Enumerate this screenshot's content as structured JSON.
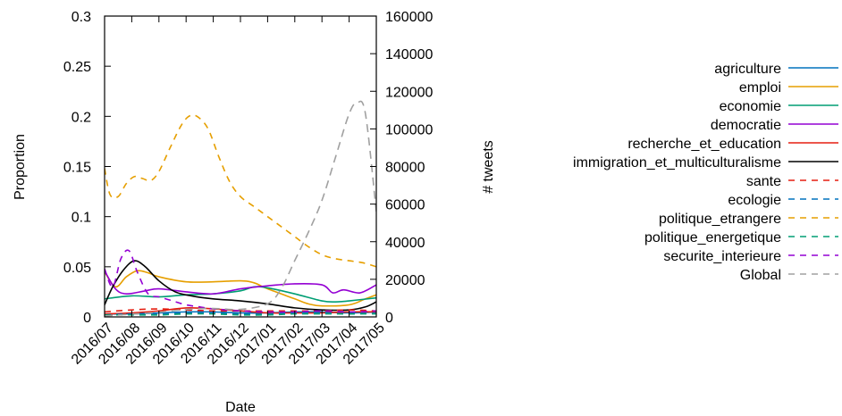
{
  "chart_data": {
    "type": "line",
    "xlabel": "Date",
    "ylabel": "Proportion",
    "y2label": "# tweets",
    "x_ticks": [
      "2016/07",
      "2016/08",
      "2016/09",
      "2016/10",
      "2016/11",
      "2016/12",
      "2017/01",
      "2017/02",
      "2017/03",
      "2017/04",
      "2017/05"
    ],
    "x_range": [
      0,
      10
    ],
    "ylim": [
      0,
      0.3
    ],
    "y_ticks": [
      "0",
      "0.05",
      "0.1",
      "0.15",
      "0.2",
      "0.25",
      "0.3"
    ],
    "y2lim": [
      0,
      160000
    ],
    "y2_ticks": [
      "0",
      "20000",
      "40000",
      "60000",
      "80000",
      "100000",
      "120000",
      "140000",
      "160000"
    ],
    "grid": false,
    "legend_position": "right",
    "series": [
      {
        "name": "agriculture",
        "color": "#0072bd",
        "dash": "solid",
        "axis": "y",
        "x": [
          0,
          1,
          2,
          3,
          4,
          5,
          6,
          7,
          8,
          9,
          10
        ],
        "y": [
          0.003,
          0.003,
          0.004,
          0.005,
          0.005,
          0.004,
          0.004,
          0.005,
          0.005,
          0.004,
          0.005
        ]
      },
      {
        "name": "emploi",
        "color": "#e69f00",
        "dash": "solid",
        "axis": "y",
        "x": [
          0,
          0.4,
          0.8,
          1.2,
          1.6,
          2,
          3,
          4,
          5,
          5.5,
          6,
          7,
          7.5,
          8,
          9,
          9.6,
          10
        ],
        "y": [
          0.045,
          0.03,
          0.04,
          0.046,
          0.044,
          0.04,
          0.035,
          0.035,
          0.036,
          0.034,
          0.028,
          0.018,
          0.013,
          0.011,
          0.012,
          0.018,
          0.022
        ]
      },
      {
        "name": "economie",
        "color": "#009e73",
        "dash": "solid",
        "axis": "y",
        "x": [
          0,
          1,
          2,
          3,
          4,
          5,
          5.5,
          6,
          7,
          8,
          8.5,
          9,
          10
        ],
        "y": [
          0.018,
          0.021,
          0.02,
          0.022,
          0.023,
          0.026,
          0.03,
          0.029,
          0.023,
          0.016,
          0.015,
          0.016,
          0.019
        ]
      },
      {
        "name": "democratie",
        "color": "#9400d3",
        "dash": "solid",
        "axis": "y",
        "x": [
          0,
          0.4,
          0.8,
          1.5,
          2,
          3,
          4,
          5,
          6,
          7,
          8,
          8.4,
          8.8,
          9.4,
          10
        ],
        "y": [
          0.046,
          0.028,
          0.023,
          0.026,
          0.028,
          0.025,
          0.023,
          0.028,
          0.031,
          0.033,
          0.032,
          0.024,
          0.027,
          0.024,
          0.032
        ]
      },
      {
        "name": "recherche_et_education",
        "color": "#e51e10",
        "dash": "solid",
        "axis": "y",
        "x": [
          0,
          1,
          2,
          3,
          4,
          5,
          6,
          7,
          8,
          9,
          10
        ],
        "y": [
          0.003,
          0.004,
          0.006,
          0.009,
          0.008,
          0.006,
          0.004,
          0.004,
          0.004,
          0.005,
          0.005
        ]
      },
      {
        "name": "immigration_et_multiculturalisme",
        "color": "#000000",
        "dash": "solid",
        "axis": "y",
        "x": [
          0,
          0.3,
          0.7,
          1.1,
          1.5,
          2,
          2.6,
          3.2,
          4,
          5,
          6,
          7,
          8,
          9,
          9.6,
          10
        ],
        "y": [
          0.012,
          0.03,
          0.047,
          0.056,
          0.05,
          0.036,
          0.025,
          0.021,
          0.018,
          0.016,
          0.013,
          0.009,
          0.007,
          0.007,
          0.01,
          0.015
        ]
      },
      {
        "name": "sante",
        "color": "#e51e10",
        "dash": "dashed",
        "axis": "y",
        "x": [
          0,
          1,
          2,
          3,
          4,
          5,
          6,
          7,
          8,
          9,
          10
        ],
        "y": [
          0.005,
          0.007,
          0.008,
          0.007,
          0.006,
          0.006,
          0.006,
          0.006,
          0.006,
          0.007,
          0.006
        ]
      },
      {
        "name": "ecologie",
        "color": "#0072bd",
        "dash": "dashed",
        "axis": "y",
        "x": [
          0,
          1,
          2,
          3,
          4,
          5,
          6,
          7,
          8,
          9,
          10
        ],
        "y": [
          0.002,
          0.003,
          0.003,
          0.004,
          0.004,
          0.003,
          0.003,
          0.004,
          0.004,
          0.003,
          0.004
        ]
      },
      {
        "name": "politique_etrangere",
        "color": "#e69f00",
        "dash": "dashed",
        "axis": "y",
        "x": [
          0,
          0.2,
          0.5,
          0.8,
          1.1,
          1.4,
          1.7,
          2,
          2.4,
          2.8,
          3.1,
          3.4,
          3.8,
          4.2,
          4.6,
          5,
          5.5,
          6,
          6.5,
          7,
          7.5,
          8,
          8.5,
          9,
          9.5,
          10
        ],
        "y": [
          0.148,
          0.122,
          0.12,
          0.133,
          0.14,
          0.138,
          0.136,
          0.145,
          0.168,
          0.19,
          0.2,
          0.2,
          0.188,
          0.16,
          0.135,
          0.12,
          0.11,
          0.1,
          0.09,
          0.08,
          0.07,
          0.062,
          0.058,
          0.056,
          0.054,
          0.05
        ]
      },
      {
        "name": "politique_energetique",
        "color": "#009e73",
        "dash": "dashed",
        "axis": "y",
        "x": [
          0,
          1,
          2,
          3,
          4,
          5,
          6,
          7,
          8,
          9,
          10
        ],
        "y": [
          0.002,
          0.002,
          0.002,
          0.003,
          0.003,
          0.002,
          0.002,
          0.003,
          0.003,
          0.003,
          0.003
        ]
      },
      {
        "name": "securite_interieure",
        "color": "#9400d3",
        "dash": "dashed",
        "axis": "y",
        "x": [
          0,
          0.3,
          0.6,
          0.9,
          1.2,
          1.6,
          2,
          2.5,
          3,
          3.5,
          4,
          5,
          6,
          7,
          8,
          9,
          10
        ],
        "y": [
          0.048,
          0.03,
          0.058,
          0.066,
          0.045,
          0.023,
          0.02,
          0.016,
          0.012,
          0.01,
          0.008,
          0.006,
          0.005,
          0.005,
          0.006,
          0.005,
          0.006
        ]
      },
      {
        "name": "Global",
        "color": "#a0a0a0",
        "dash": "dashed",
        "axis": "y2",
        "x": [
          0,
          1,
          2,
          3,
          4,
          5,
          6,
          6.5,
          7,
          7.5,
          8,
          8.5,
          9,
          9.3,
          9.6,
          10
        ],
        "y": [
          500,
          1500,
          2500,
          4000,
          4500,
          4000,
          7000,
          15000,
          30000,
          45000,
          62000,
          85000,
          108000,
          114000,
          108000,
          56000
        ]
      }
    ]
  }
}
